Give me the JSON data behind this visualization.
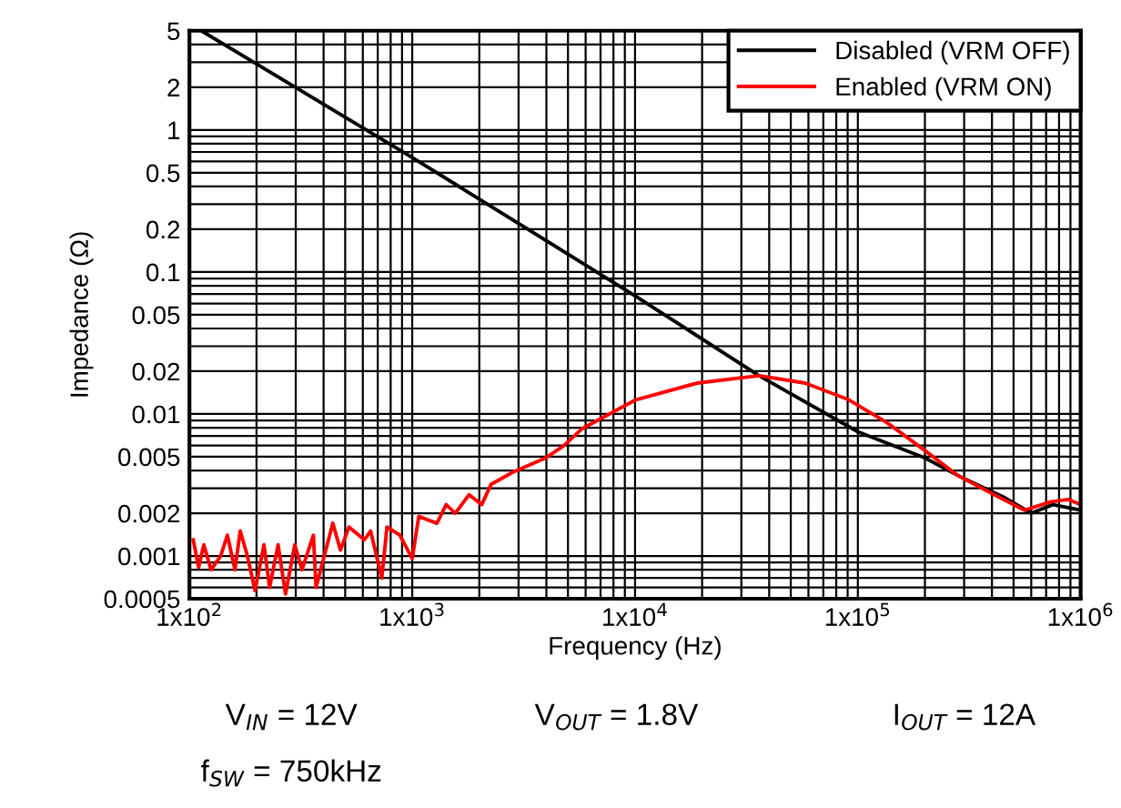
{
  "chart_data": {
    "type": "line",
    "xlabel": "Frequency (Hz)",
    "ylabel": "Impedance (Ω)",
    "log": "xy",
    "grid": true,
    "legend": "top right",
    "marker": "none",
    "line_style": "solid",
    "xlim": [
      100,
      1000000
    ],
    "xticks": [
      {
        "value": 100,
        "label": "1x10$^{2}$"
      },
      {
        "value": 1000,
        "label": "1x10$^{3}$"
      },
      {
        "value": 10000,
        "label": "1x10$^{4}$"
      },
      {
        "value": 100000,
        "label": "1x10$^{5}$"
      },
      {
        "value": 1000000,
        "label": "1x10$^{6}$"
      }
    ],
    "ylim": [
      0.0005,
      5
    ],
    "yticks": [
      0.0005,
      0.001,
      0.002,
      0.005,
      0.01,
      0.02,
      0.05,
      0.1,
      0.2,
      0.5,
      1,
      2,
      5
    ],
    "series": [
      {
        "name": "Disabled (VRM OFF)",
        "color": "#000000",
        "x": [
          113,
          1000,
          10000,
          36000,
          100000,
          200000,
          300000,
          450000,
          600000,
          750000,
          1000000
        ],
        "values": [
          5,
          0.64,
          0.068,
          0.0186,
          0.0075,
          0.0049,
          0.0035,
          0.0026,
          0.002,
          0.0023,
          0.0021
        ]
      },
      {
        "name": "Enabled (VRM ON)",
        "color": "#ff0000",
        "x": [
          104,
          110,
          116,
          125,
          138,
          148,
          160,
          169,
          182,
          197,
          216,
          229,
          250,
          270,
          297,
          320,
          360,
          370,
          440,
          476,
          520,
          610,
          650,
          730,
          770,
          880,
          1000,
          1070,
          1290,
          1420,
          1560,
          1800,
          2050,
          2260,
          2840,
          3970,
          4800,
          5800,
          10100,
          19000,
          36000,
          58000,
          91000,
          135000,
          195000,
          280000,
          410000,
          560000,
          730000,
          880000,
          1000000
        ],
        "values": [
          0.0013,
          0.00083,
          0.0012,
          0.0008,
          0.001,
          0.0014,
          0.0008,
          0.0015,
          0.001,
          0.00057,
          0.0012,
          0.0006,
          0.0012,
          0.00054,
          0.0012,
          0.0008,
          0.0014,
          0.0006,
          0.0017,
          0.0011,
          0.0016,
          0.0013,
          0.0015,
          0.0007,
          0.0016,
          0.0014,
          0.00096,
          0.0019,
          0.0017,
          0.0023,
          0.002,
          0.0027,
          0.0023,
          0.0032,
          0.0039,
          0.0049,
          0.006,
          0.0079,
          0.0126,
          0.0165,
          0.0186,
          0.0165,
          0.0126,
          0.0087,
          0.0057,
          0.0037,
          0.0027,
          0.0021,
          0.0024,
          0.0025,
          0.0023
        ]
      }
    ],
    "annotations": [
      "V$_{IN}$ = 12V",
      "V$_{OUT}$ = 1.8V",
      "I$_{OUT}$ = 12A",
      "f$_{SW}$ = 750kHz"
    ]
  }
}
